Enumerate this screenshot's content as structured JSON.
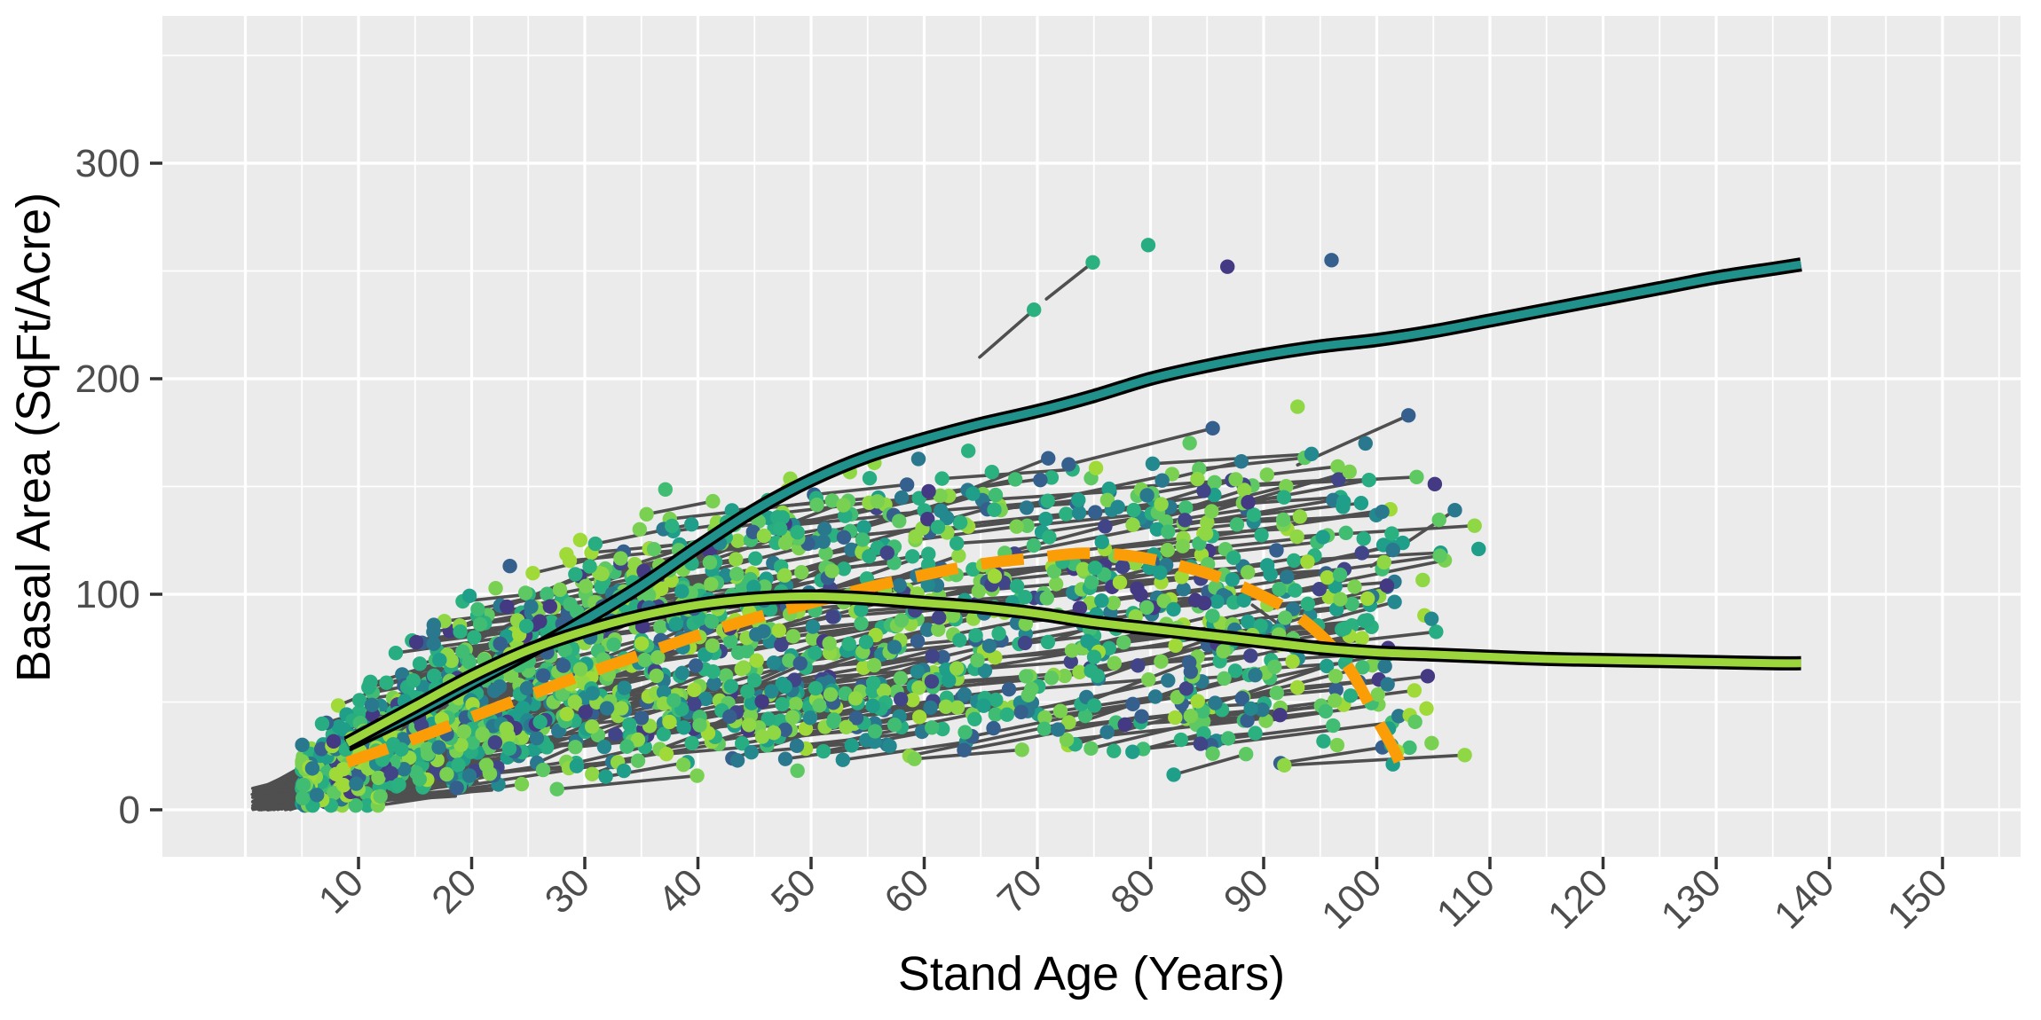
{
  "chart_data": {
    "type": "scatter",
    "title": "",
    "xlabel": "Stand Age (Years)",
    "ylabel": "Basal Area (SqFt/Acre)",
    "xlim": [
      -7.3,
      157
    ],
    "ylim": [
      -22,
      369
    ],
    "x_labeled_ticks": [
      10,
      20,
      30,
      40,
      50,
      60,
      70,
      80,
      90,
      100,
      110,
      120,
      130,
      140,
      150
    ],
    "x_major_gridlines": [
      0,
      10,
      20,
      30,
      40,
      50,
      60,
      70,
      80,
      90,
      100,
      110,
      120,
      130,
      140,
      150
    ],
    "x_minor_gridlines": [
      5,
      15,
      25,
      35,
      45,
      55,
      65,
      75,
      85,
      95,
      105,
      115,
      125,
      135,
      145,
      155
    ],
    "y_labeled_ticks": [
      0,
      100,
      200,
      300
    ],
    "y_major_gridlines": [
      0,
      100,
      200,
      300
    ],
    "y_minor_gridlines": [
      50,
      150,
      250,
      350
    ],
    "grid": "white major+minor gridlines on grey panel",
    "legend_position": "none",
    "series": [
      {
        "name": "upper-smooth-teal",
        "type": "line",
        "style": "solid",
        "color": "#21918c",
        "outline": "#000000",
        "x": [
          9,
          15,
          20,
          25,
          30,
          35,
          40,
          45,
          50,
          55,
          60,
          65,
          70,
          75,
          80,
          85,
          90,
          95,
          100,
          105,
          110,
          115,
          120,
          125,
          130,
          135,
          137.5
        ],
        "y": [
          30,
          45,
          59,
          73,
          88,
          104,
          122,
          139,
          153,
          164,
          172,
          179,
          185,
          192,
          200,
          206,
          211,
          215,
          218,
          222,
          227,
          232,
          237,
          242,
          247,
          251,
          253
        ]
      },
      {
        "name": "lower-smooth-green",
        "type": "line",
        "style": "solid",
        "color": "#9cd53c",
        "outline": "#000000",
        "x": [
          9,
          15,
          20,
          25,
          30,
          35,
          40,
          45,
          50,
          55,
          60,
          65,
          70,
          75,
          80,
          85,
          90,
          95,
          100,
          105,
          110,
          115,
          120,
          125,
          130,
          135,
          137.5
        ],
        "y": [
          31,
          48,
          62,
          74,
          83,
          90,
          95,
          98,
          99,
          98,
          96,
          94,
          91,
          87,
          84,
          81,
          78,
          75,
          73,
          72,
          71,
          70,
          69.5,
          69,
          68.5,
          68,
          68
        ]
      },
      {
        "name": "dashed-smooth-orange",
        "type": "line",
        "style": "dashed",
        "color": "#fb9d07",
        "outline": null,
        "x": [
          9,
          15,
          20,
          25,
          30,
          35,
          40,
          45,
          50,
          55,
          60,
          65,
          70,
          74,
          78,
          82,
          86,
          90,
          93,
          96,
          98,
          100,
          101.5,
          102.5
        ],
        "y": [
          22,
          33,
          43,
          53,
          63,
          72,
          81,
          89,
          96,
          103,
          109,
          114,
          117,
          119,
          118,
          114,
          108,
          99,
          90,
          76,
          62,
          42,
          28,
          16
        ]
      },
      {
        "name": "stand-remeasurements",
        "type": "scatter+segments",
        "description": "hundreds of overlapping stand remeasurement points (viridis colors) joined by short dark-grey growth segments, ages ~1-110, basal area ~0-262",
        "approx_point_count": 2000
      }
    ],
    "feature_points": [
      {
        "age": 69.7,
        "ba": 232,
        "color": "#2bb07f"
      },
      {
        "age": 74.9,
        "ba": 254,
        "color": "#2bb07f"
      },
      {
        "age": 79.8,
        "ba": 262,
        "color": "#27ad81"
      },
      {
        "age": 86.8,
        "ba": 252,
        "color": "#443983"
      },
      {
        "age": 96.0,
        "ba": 255,
        "color": "#35608d"
      },
      {
        "age": 102.8,
        "ba": 183,
        "color": "#35608d"
      },
      {
        "age": 106.9,
        "ba": 139,
        "color": "#2a788e"
      },
      {
        "age": 100.9,
        "ba": 104,
        "color": "#443983"
      },
      {
        "age": 104.5,
        "ba": 62,
        "color": "#443983"
      },
      {
        "age": 109.0,
        "ba": 121,
        "color": "#1f9e89"
      },
      {
        "age": 96.5,
        "ba": 30,
        "color": "#7ad151"
      },
      {
        "age": 93.0,
        "ba": 187,
        "color": "#8fd744"
      },
      {
        "age": 99.0,
        "ba": 170,
        "color": "#2a788e"
      },
      {
        "age": 101.0,
        "ba": 75,
        "color": "#443983"
      }
    ],
    "feature_segments": [
      {
        "a1": 64.9,
        "b1": 210,
        "a2": 69.7,
        "b2": 232
      },
      {
        "a1": 70.8,
        "b1": 237,
        "a2": 74.9,
        "b2": 254
      },
      {
        "a1": 93.0,
        "b1": 160,
        "a2": 102.8,
        "b2": 183
      },
      {
        "a1": 99.5,
        "b1": 113,
        "a2": 106.9,
        "b2": 139
      },
      {
        "a1": 89.0,
        "b1": 95,
        "a2": 95.0,
        "b2": 72
      },
      {
        "a1": 98.0,
        "b1": 58,
        "a2": 104.5,
        "b2": 62
      }
    ]
  },
  "style": {
    "panel_background": "#ebebeb",
    "gridline_color": "#ffffff",
    "tick_mark_color": "#333333",
    "tick_label_color": "#4d4d4d",
    "axis_title_color": "#000000",
    "segment_color": "#4f4f4f",
    "smooth_outline_color": "#000000",
    "teal_line_color": "#21918c",
    "green_line_color": "#9cd53c",
    "orange_line_color": "#fb9d07"
  },
  "scatter_generator": {
    "seed": 7,
    "point_radius": 8.2,
    "segment_width": 3.6,
    "point_colors": [
      "#443983",
      "#414487",
      "#35608d",
      "#2a788e",
      "#23898e",
      "#1f9e89",
      "#27ad81",
      "#2bb07f",
      "#40bd72",
      "#5ec962",
      "#7ad151",
      "#8fd744",
      "#a0da39"
    ],
    "color_weights": [
      5,
      4,
      7,
      9,
      7,
      9,
      10,
      10,
      8,
      8,
      12,
      11,
      8
    ],
    "upper_envelope": [
      [
        4,
        55
      ],
      [
        10,
        105
      ],
      [
        18,
        150
      ],
      [
        28,
        178
      ],
      [
        38,
        192
      ],
      [
        50,
        202
      ],
      [
        62,
        210
      ],
      [
        75,
        220
      ],
      [
        85,
        215
      ],
      [
        95,
        200
      ],
      [
        105,
        165
      ],
      [
        112,
        140
      ]
    ],
    "base_curve": [
      [
        3,
        10
      ],
      [
        8,
        22
      ],
      [
        15,
        45
      ],
      [
        25,
        65
      ],
      [
        35,
        80
      ],
      [
        45,
        90
      ],
      [
        55,
        95
      ],
      [
        70,
        96
      ],
      [
        85,
        95
      ],
      [
        105,
        88
      ]
    ],
    "fan": {
      "count": 380,
      "age_min": 0.6,
      "age_span": 3.6,
      "ba_max": 10,
      "len_min": 4,
      "len_span": 15,
      "dot_prob": 0.13
    },
    "pairs": {
      "count": 640,
      "age_min": 5,
      "age_span": 88,
      "age_pow": 1.35,
      "len_min": 5,
      "len_span": 11,
      "same_color_prob": 0.6
    },
    "singles": {
      "count": 500,
      "age_min": 5,
      "age_span": 101,
      "age_pow": 1.3
    }
  }
}
